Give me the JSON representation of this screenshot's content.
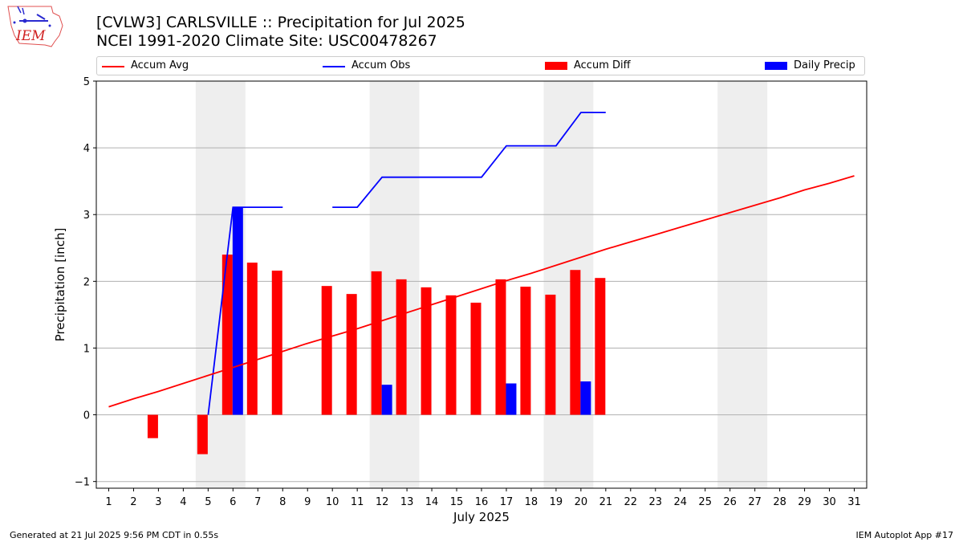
{
  "header": {
    "title_line1": "[CVLW3] CARLSVILLE :: Precipitation for Jul 2025",
    "title_line2": "NCEI 1991-2020 Climate Site: USC00478267"
  },
  "logo": {
    "text": "IEM"
  },
  "footer": {
    "left": "Generated at 21 Jul 2025 9:56 PM CDT in 0.55s",
    "right": "IEM Autoplot App #17"
  },
  "chart_data": {
    "type": "bar",
    "xlabel": "July 2025",
    "ylabel": "Precipitation [inch]",
    "xlim": [
      0.5,
      31.5
    ],
    "ylim": [
      -1.1,
      5.0
    ],
    "x_ticks": [
      1,
      2,
      3,
      4,
      5,
      6,
      7,
      8,
      9,
      10,
      11,
      12,
      13,
      14,
      15,
      16,
      17,
      18,
      19,
      20,
      21,
      22,
      23,
      24,
      25,
      26,
      27,
      28,
      29,
      30,
      31
    ],
    "y_ticks": [
      -1,
      0,
      1,
      2,
      3,
      4,
      5
    ],
    "grid": "horizontal",
    "legend_placement": "top",
    "weekend_shading_days": [
      [
        5,
        6
      ],
      [
        12,
        13
      ],
      [
        19,
        20
      ],
      [
        26,
        27
      ]
    ],
    "colors": {
      "accum_avg": "#ff0000",
      "accum_obs": "#0000ff",
      "accum_diff": "#ff0000",
      "daily_precip": "#0000ff",
      "weekend": "#eeeeee",
      "grid": "#b0b0b0"
    },
    "series": [
      {
        "name": "Accum Avg",
        "kind": "line",
        "x": [
          1,
          2,
          3,
          4,
          5,
          6,
          7,
          8,
          9,
          10,
          11,
          12,
          13,
          14,
          15,
          16,
          17,
          18,
          19,
          20,
          21,
          22,
          23,
          24,
          25,
          26,
          27,
          28,
          29,
          30,
          31
        ],
        "values": [
          0.12,
          0.24,
          0.35,
          0.47,
          0.59,
          0.71,
          0.83,
          0.95,
          1.07,
          1.18,
          1.29,
          1.41,
          1.53,
          1.65,
          1.77,
          1.89,
          2.01,
          2.12,
          2.24,
          2.36,
          2.48,
          2.59,
          2.7,
          2.81,
          2.92,
          3.03,
          3.14,
          3.25,
          3.37,
          3.47,
          3.58
        ]
      },
      {
        "name": "Accum Obs",
        "kind": "line",
        "x": [
          5,
          6,
          7,
          8,
          null,
          10,
          11,
          12,
          13,
          14,
          15,
          16,
          17,
          18,
          19,
          20,
          21
        ],
        "values": [
          0.0,
          3.11,
          3.11,
          3.11,
          null,
          3.11,
          3.11,
          3.56,
          3.56,
          3.56,
          3.56,
          3.56,
          4.03,
          4.03,
          4.03,
          4.53,
          4.53
        ]
      },
      {
        "name": "Accum Diff",
        "kind": "bar",
        "x": [
          3,
          5,
          6,
          7,
          8,
          10,
          11,
          12,
          13,
          14,
          15,
          16,
          17,
          18,
          19,
          20,
          21
        ],
        "values": [
          -0.35,
          -0.59,
          2.4,
          2.28,
          2.16,
          1.93,
          1.81,
          2.15,
          2.03,
          1.91,
          1.79,
          1.68,
          2.03,
          1.92,
          1.8,
          2.17,
          2.05
        ]
      },
      {
        "name": "Daily Precip",
        "kind": "bar",
        "x": [
          6,
          12,
          17,
          20
        ],
        "values": [
          3.11,
          0.45,
          0.47,
          0.5
        ]
      }
    ]
  }
}
